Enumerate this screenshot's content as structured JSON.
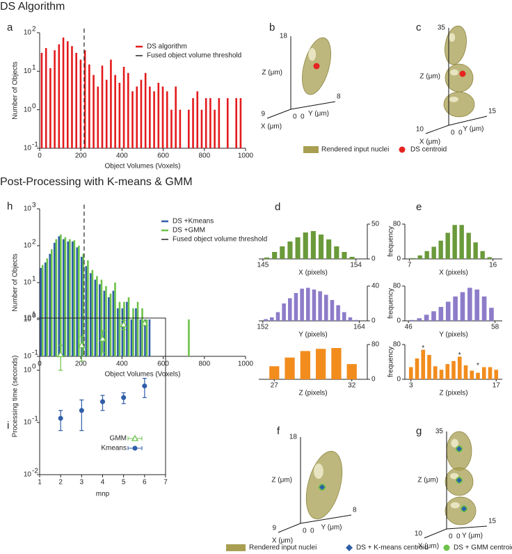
{
  "headings": [
    "DS Algorithm",
    "Post-Processing with K-means & GMM"
  ],
  "panel_labels": [
    "a",
    "b",
    "c",
    "h",
    "d",
    "e",
    "i",
    "f",
    "g"
  ],
  "chart_data": [
    {
      "type": "bar",
      "xlabel": "Object Volumes (Voxels)",
      "ylabel": "Number of Objects",
      "log_y": true,
      "x": [
        10,
        31,
        52,
        73,
        94,
        115,
        136,
        157,
        178,
        199,
        220,
        241,
        262,
        283,
        304,
        325,
        346,
        367,
        388,
        409,
        430,
        451,
        472,
        493,
        514,
        535,
        556,
        577,
        598,
        619,
        640,
        661,
        682,
        703,
        724,
        745,
        766,
        787,
        808,
        829,
        850,
        871,
        892,
        913,
        934,
        955,
        976
      ],
      "series": [
        {
          "name": "DS algorithm",
          "color": "#e41a1c",
          "values": [
            30,
            40,
            12,
            35,
            50,
            75,
            60,
            45,
            30,
            20,
            35,
            15,
            8,
            4,
            14,
            6,
            20,
            8,
            5,
            13,
            9,
            3,
            4,
            6,
            9,
            4,
            3,
            5,
            4,
            3,
            1,
            4,
            1,
            null,
            1,
            2,
            3,
            1,
            2,
            2,
            1,
            2,
            null,
            2,
            null,
            2,
            2
          ]
        }
      ],
      "threshold": {
        "name": "Fused object volume threshold",
        "value": 216,
        "color": "#222222"
      },
      "xlim": [
        0,
        1000
      ],
      "xticks": [
        0,
        200,
        400,
        600,
        800,
        1000
      ],
      "ylim": [
        0.1,
        100
      ],
      "yticks": [
        {
          "value": 0.1,
          "label": "10",
          "sup": "-1"
        },
        {
          "value": 1,
          "label": "10",
          "sup": "0"
        },
        {
          "value": 10,
          "label": "10",
          "sup": "1"
        },
        {
          "value": 100,
          "label": "10",
          "sup": "2"
        }
      ]
    },
    {
      "type": "bar",
      "xlabel": "Object Volumes (Voxels)",
      "ylabel": "Number of Objects",
      "log_y": true,
      "x": [
        10,
        32,
        54,
        76,
        98,
        120,
        142,
        164,
        186,
        208,
        230,
        252,
        274,
        296,
        318,
        340,
        362,
        384,
        406,
        428,
        450,
        472,
        494,
        516,
        538,
        720
      ],
      "series": [
        {
          "name": "DS +Kmeans",
          "color": "#2f5ea8",
          "values": [
            25,
            35,
            60,
            120,
            180,
            150,
            130,
            130,
            90,
            50,
            28,
            18,
            12,
            9,
            6,
            4,
            6,
            2,
            2,
            3,
            1,
            2,
            1,
            1,
            1,
            null
          ]
        },
        {
          "name": "DS +GMM",
          "color": "#6cc24a",
          "values": [
            30,
            45,
            80,
            150,
            200,
            170,
            150,
            140,
            100,
            60,
            40,
            22,
            15,
            12,
            8,
            5,
            10,
            3,
            3,
            4,
            2,
            3,
            2,
            1,
            null,
            1
          ]
        }
      ],
      "threshold": {
        "name": "Fused object volume threshold",
        "value": 216,
        "color": "#222222"
      },
      "xlim": [
        0,
        1000
      ],
      "xticks": [
        0,
        200,
        400,
        600,
        800,
        1000
      ],
      "ylim": [
        0.1,
        1000
      ],
      "yticks": [
        {
          "value": 0.1,
          "label": "10",
          "sup": "-1"
        },
        {
          "value": 1,
          "label": "10",
          "sup": "0"
        },
        {
          "value": 10,
          "label": "10",
          "sup": "1"
        },
        {
          "value": 100,
          "label": "10",
          "sup": "2"
        },
        {
          "value": 1000,
          "label": "10",
          "sup": "3"
        }
      ]
    },
    {
      "type": "histogram",
      "xlabel": "X (pixels)",
      "color": "#6a9a3a",
      "y_axis": "right",
      "bins": [
        145,
        145.75,
        146.5,
        147.25,
        148,
        148.75,
        149.5,
        150.25,
        151,
        151.75,
        152.5,
        153.25,
        154
      ],
      "values": [
        2,
        10,
        18,
        25,
        31,
        38,
        40,
        35,
        28,
        18,
        10,
        3
      ],
      "xlim": [
        144.6,
        155.1
      ],
      "xticks": [
        145,
        154
      ],
      "ylim": [
        0,
        50
      ],
      "yticks": [
        0,
        50
      ]
    },
    {
      "type": "histogram",
      "xlabel": "Y (pixels)",
      "color": "#8d7cc9",
      "y_axis": "right",
      "bins": [
        152,
        152.75,
        153.5,
        154.25,
        155,
        155.75,
        156.5,
        157.25,
        158,
        158.75,
        159.5,
        160.25,
        161,
        161.75,
        162.5,
        163.25,
        164
      ],
      "values": [
        2,
        4,
        10,
        20,
        26,
        32,
        37,
        38,
        36,
        34,
        30,
        24,
        18,
        10,
        4,
        1
      ],
      "xlim": [
        151.5,
        165
      ],
      "xticks": [
        152,
        164
      ],
      "ylim": [
        0,
        40
      ],
      "yticks": [
        0,
        40
      ]
    },
    {
      "type": "histogram",
      "xlabel": "Z (pixels)",
      "color": "#f28c1d",
      "y_axis": "right",
      "bins": [
        26.5,
        27.5,
        28.5,
        29.5,
        30.5,
        31.5,
        32.5
      ],
      "values": [
        30,
        50,
        65,
        70,
        72,
        35
      ],
      "xlim": [
        26,
        33
      ],
      "xticks": [
        27,
        32
      ],
      "ylim": [
        0,
        80
      ],
      "yticks": [
        0,
        80
      ]
    },
    {
      "type": "histogram",
      "xlabel": "X (pixels)",
      "ylabel": "frequency",
      "color": "#6a9a3a",
      "y_axis": "left",
      "bins": [
        7,
        7.75,
        8.5,
        9.25,
        10,
        10.75,
        11.5,
        12.25,
        13,
        13.75,
        14.5,
        15.25,
        16
      ],
      "values": [
        2,
        8,
        18,
        28,
        42,
        60,
        78,
        78,
        60,
        38,
        18,
        4
      ],
      "xlim": [
        6.5,
        17
      ],
      "xticks": [
        7,
        16
      ],
      "ylim": [
        0,
        80
      ],
      "yticks": [
        0,
        80
      ]
    },
    {
      "type": "histogram",
      "xlabel": "Y (pixels)",
      "ylabel": "frequency",
      "color": "#8d7cc9",
      "y_axis": "left",
      "bins": [
        46,
        47,
        48,
        49,
        50,
        51,
        52,
        53,
        54,
        55,
        56,
        57,
        58
      ],
      "values": [
        2,
        6,
        14,
        22,
        32,
        44,
        56,
        66,
        76,
        72,
        56,
        30
      ],
      "xlim": [
        45.5,
        59
      ],
      "xticks": [
        46,
        58
      ],
      "ylim": [
        0,
        80
      ],
      "yticks": [
        0,
        80
      ]
    },
    {
      "type": "histogram",
      "xlabel": "Z (pixels)",
      "ylabel": "frequency",
      "color": "#f28c1d",
      "y_axis": "left",
      "bins": [
        2.5,
        3.5,
        4.5,
        5.5,
        6.5,
        7.5,
        8.5,
        9.5,
        10.5,
        11.5,
        12.5,
        13.5,
        14.5,
        15.5,
        16.5,
        17.5
      ],
      "values": [
        28,
        48,
        68,
        56,
        30,
        22,
        35,
        42,
        52,
        32,
        20,
        15,
        28,
        28,
        22
      ],
      "annotations": [
        {
          "text": "*",
          "x": 5,
          "y": 68
        },
        {
          "text": "*",
          "x": 11,
          "y": 52
        },
        {
          "text": "*",
          "x": 14,
          "y": 28
        }
      ],
      "xlim": [
        2,
        18
      ],
      "xticks": [
        3,
        17
      ],
      "ylim": [
        0,
        80
      ],
      "yticks": [
        0,
        80
      ]
    },
    {
      "type": "scatter",
      "xlabel": "mnp",
      "ylabel": "Processing time (seconds)",
      "log_y": true,
      "x": [
        2,
        3,
        4,
        5,
        6
      ],
      "series": [
        {
          "name": "GMM",
          "color": "#6cc24a",
          "marker": "triangle",
          "values": [
            2,
            3,
            4,
            7.5,
            8
          ],
          "errors": [
            1,
            1.5,
            1.8,
            1.5,
            0.8
          ]
        },
        {
          "name": "Kmeans",
          "color": "#2f5ea8",
          "marker": "circle",
          "values": [
            0.12,
            0.17,
            0.25,
            0.3,
            0.5
          ],
          "errors": [
            0.05,
            0.1,
            0.08,
            0.07,
            0.2
          ]
        }
      ],
      "xlim": [
        1,
        7
      ],
      "xticks": [
        1,
        2,
        3,
        4,
        5,
        6,
        7
      ],
      "ylim": [
        0.01,
        10
      ],
      "yticks": [
        {
          "value": 0.01,
          "label": "10",
          "sup": "-2"
        },
        {
          "value": 0.1,
          "label": "10",
          "sup": "-1"
        },
        {
          "value": 1,
          "label": "10",
          "sup": "0"
        },
        {
          "value": 10,
          "label": "10",
          "sup": "1"
        }
      ]
    }
  ],
  "renders": [
    {
      "z_label": "Z (μm)",
      "x_label": "X (μm)",
      "y_label": "Y (μm)",
      "z_max": 18,
      "x_max": 9,
      "x_min": 0,
      "y_min": 0,
      "y_max": 8
    },
    {
      "z_label": "Z (μm)",
      "x_label": "X (μm)",
      "y_label": "Y (μm)",
      "z_max": 35,
      "x_max": 10,
      "x_min": 0,
      "y_min": 0,
      "y_max": 15
    },
    {
      "z_label": "Z (μm)",
      "x_label": "X (μm)",
      "y_label": "Y (μm)",
      "z_max": 18,
      "x_max": 9,
      "x_min": 0,
      "y_min": 0,
      "y_max": 8
    },
    {
      "z_label": "Z (μm)",
      "x_label": "X (μm)",
      "y_label": "Y (μm)",
      "z_max": 35,
      "x_max": 10,
      "x_min": 0,
      "y_min": 0,
      "y_max": 15
    }
  ],
  "legend_top": [
    {
      "text": "Rendered input nuclei",
      "color": "#a89f52"
    },
    {
      "text": "DS centroid",
      "color": "#e52421"
    }
  ],
  "legend_bottom": [
    {
      "text": "Rendered input nuclei",
      "color": "#a89f52"
    },
    {
      "text": "DS + K-means centroid",
      "color": "#2f5ea8"
    },
    {
      "text": "DS + GMM centroid",
      "color": "#6cc24a"
    }
  ]
}
